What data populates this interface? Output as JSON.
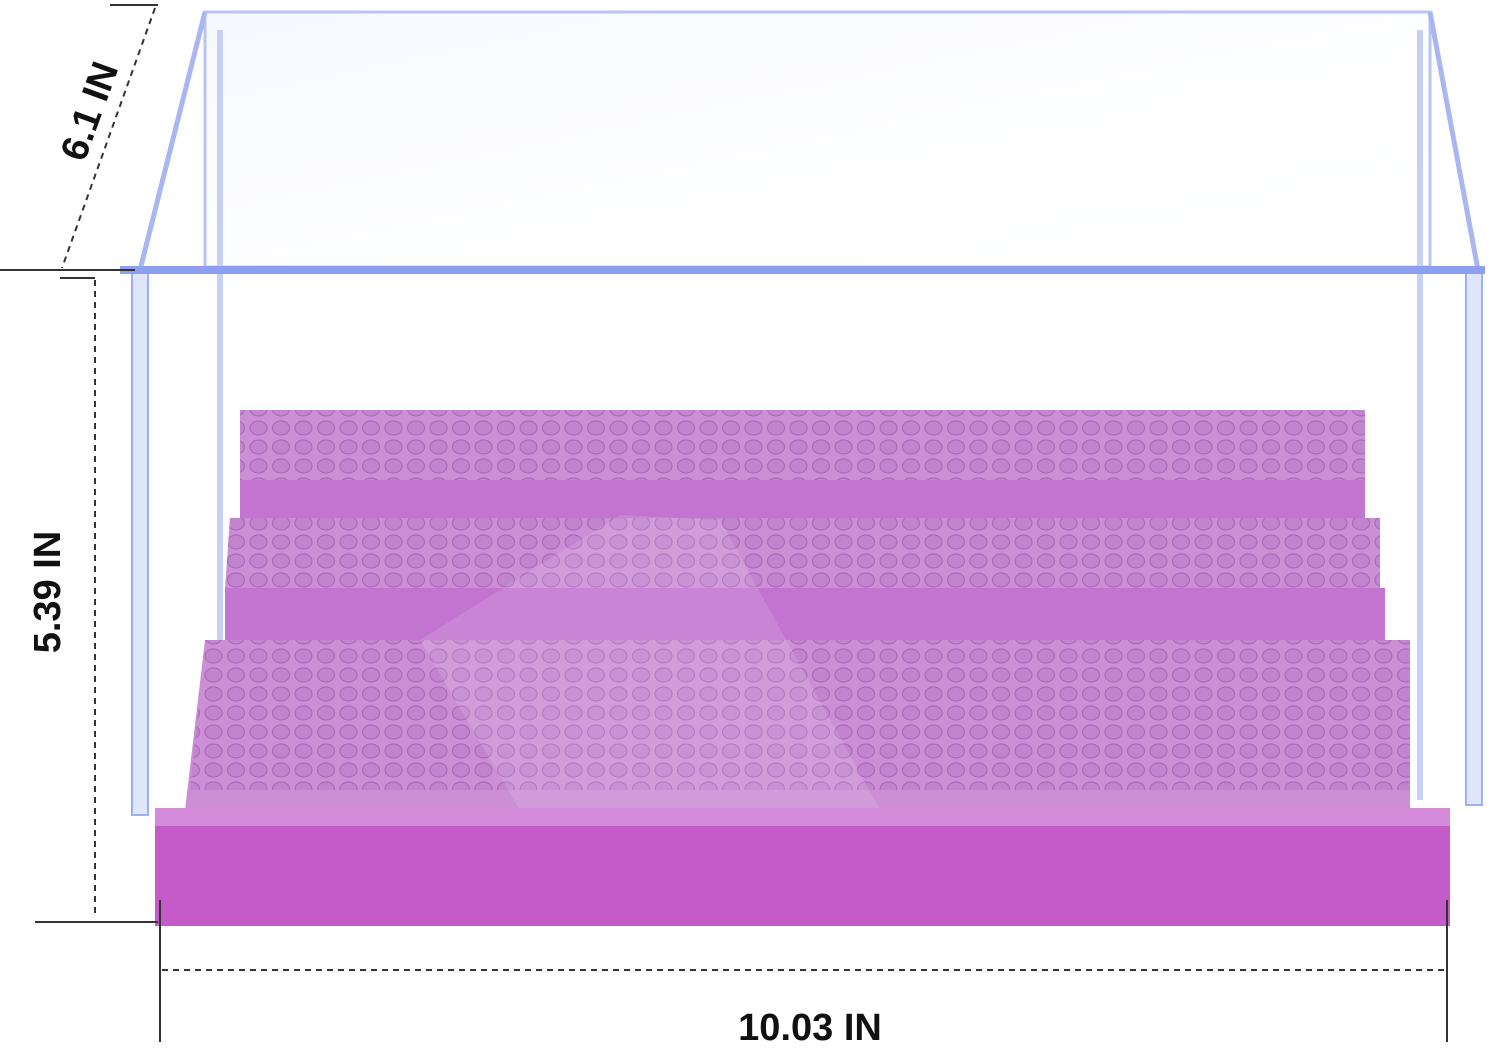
{
  "dimensions": {
    "depth": "6.1 IN",
    "height": "5.39 IN",
    "width": "10.03 IN"
  }
}
